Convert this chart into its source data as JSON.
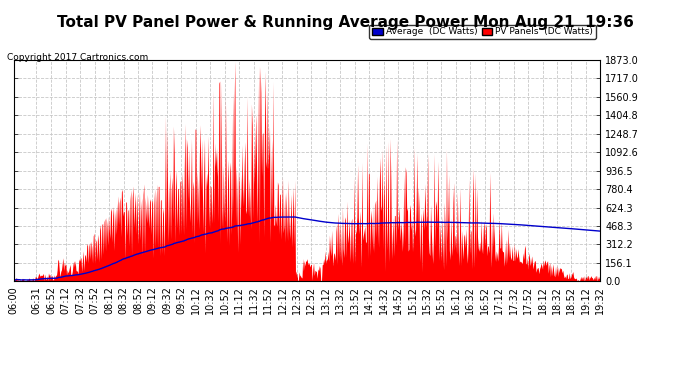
{
  "title": "Total PV Panel Power & Running Average Power Mon Aug 21  19:36",
  "copyright": "Copyright 2017 Cartronics.com",
  "legend_avg": "Average  (DC Watts)",
  "legend_pv": "PV Panels  (DC Watts)",
  "y_ticks": [
    0.0,
    156.1,
    312.2,
    468.3,
    624.3,
    780.4,
    936.5,
    1092.6,
    1248.7,
    1404.8,
    1560.9,
    1717.0,
    1873.0
  ],
  "y_max": 1873.0,
  "y_min": 0.0,
  "bg_color": "#ffffff",
  "plot_bg_color": "#ffffff",
  "grid_color": "#c8c8c8",
  "pv_fill_color": "#ff0000",
  "avg_line_color": "#0000cc",
  "title_fontsize": 11,
  "axis_fontsize": 7,
  "time_labels": [
    "06:00",
    "06:31",
    "06:52",
    "07:12",
    "07:32",
    "07:52",
    "08:12",
    "08:32",
    "08:52",
    "09:12",
    "09:32",
    "09:52",
    "10:12",
    "10:32",
    "10:52",
    "11:12",
    "11:32",
    "11:52",
    "12:12",
    "12:32",
    "12:52",
    "13:12",
    "13:32",
    "13:52",
    "14:12",
    "14:32",
    "14:52",
    "15:12",
    "15:32",
    "15:52",
    "16:12",
    "16:32",
    "16:52",
    "17:12",
    "17:32",
    "17:52",
    "18:12",
    "18:32",
    "18:52",
    "19:12",
    "19:32"
  ]
}
